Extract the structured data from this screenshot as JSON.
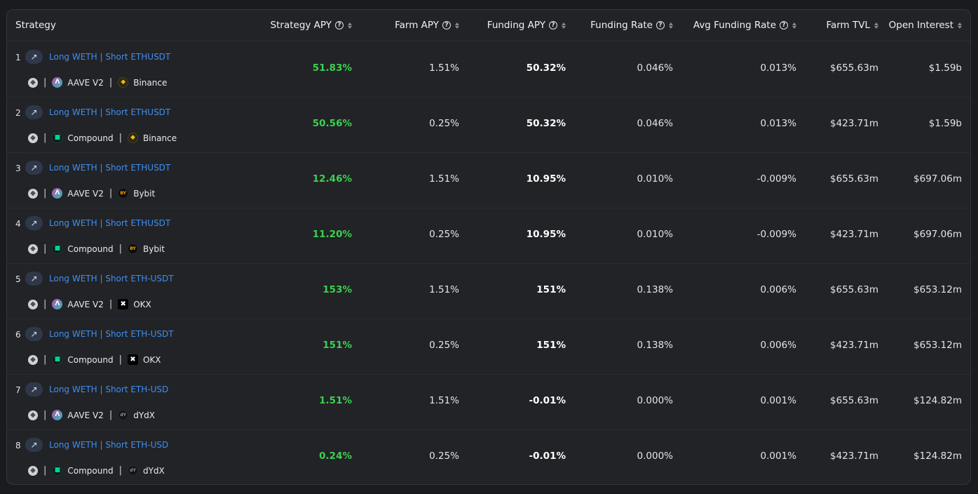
{
  "columns": [
    {
      "label": "Strategy",
      "help": false,
      "sort": false
    },
    {
      "label": "Strategy APY",
      "help": true,
      "sort": true
    },
    {
      "label": "Farm APY",
      "help": true,
      "sort": true
    },
    {
      "label": "Funding APY",
      "help": true,
      "sort": true
    },
    {
      "label": "Funding Rate",
      "help": true,
      "sort": true
    },
    {
      "label": "Avg Funding Rate",
      "help": true,
      "sort": true
    },
    {
      "label": "Farm TVL",
      "help": false,
      "sort": true
    },
    {
      "label": "Open Interest",
      "help": false,
      "sort": true
    }
  ],
  "rows": [
    {
      "index": "1",
      "strategy": "Long WETH | Short ETHUSDT",
      "protocol": "AAVE V2",
      "protocol_icon": "aave-icon",
      "exchange": "Binance",
      "exchange_icon": "binance-icon",
      "strategy_apy": "51.83%",
      "farm_apy": "1.51%",
      "funding_apy": "50.32%",
      "funding_rate": "0.046%",
      "avg_funding_rate": "0.013%",
      "farm_tvl": "$655.63m",
      "open_interest": "$1.59b"
    },
    {
      "index": "2",
      "strategy": "Long WETH | Short ETHUSDT",
      "protocol": "Compound",
      "protocol_icon": "compound-icon",
      "exchange": "Binance",
      "exchange_icon": "binance-icon",
      "strategy_apy": "50.56%",
      "farm_apy": "0.25%",
      "funding_apy": "50.32%",
      "funding_rate": "0.046%",
      "avg_funding_rate": "0.013%",
      "farm_tvl": "$423.71m",
      "open_interest": "$1.59b"
    },
    {
      "index": "3",
      "strategy": "Long WETH | Short ETHUSDT",
      "protocol": "AAVE V2",
      "protocol_icon": "aave-icon",
      "exchange": "Bybit",
      "exchange_icon": "bybit-icon",
      "strategy_apy": "12.46%",
      "farm_apy": "1.51%",
      "funding_apy": "10.95%",
      "funding_rate": "0.010%",
      "avg_funding_rate": "-0.009%",
      "farm_tvl": "$655.63m",
      "open_interest": "$697.06m"
    },
    {
      "index": "4",
      "strategy": "Long WETH | Short ETHUSDT",
      "protocol": "Compound",
      "protocol_icon": "compound-icon",
      "exchange": "Bybit",
      "exchange_icon": "bybit-icon",
      "strategy_apy": "11.20%",
      "farm_apy": "0.25%",
      "funding_apy": "10.95%",
      "funding_rate": "0.010%",
      "avg_funding_rate": "-0.009%",
      "farm_tvl": "$423.71m",
      "open_interest": "$697.06m"
    },
    {
      "index": "5",
      "strategy": "Long WETH | Short ETH-USDT",
      "protocol": "AAVE V2",
      "protocol_icon": "aave-icon",
      "exchange": "OKX",
      "exchange_icon": "okx-icon",
      "strategy_apy": "153%",
      "farm_apy": "1.51%",
      "funding_apy": "151%",
      "funding_rate": "0.138%",
      "avg_funding_rate": "0.006%",
      "farm_tvl": "$655.63m",
      "open_interest": "$653.12m"
    },
    {
      "index": "6",
      "strategy": "Long WETH | Short ETH-USDT",
      "protocol": "Compound",
      "protocol_icon": "compound-icon",
      "exchange": "OKX",
      "exchange_icon": "okx-icon",
      "strategy_apy": "151%",
      "farm_apy": "0.25%",
      "funding_apy": "151%",
      "funding_rate": "0.138%",
      "avg_funding_rate": "0.006%",
      "farm_tvl": "$423.71m",
      "open_interest": "$653.12m"
    },
    {
      "index": "7",
      "strategy": "Long WETH | Short ETH-USD",
      "protocol": "AAVE V2",
      "protocol_icon": "aave-icon",
      "exchange": "dYdX",
      "exchange_icon": "dydx-icon",
      "strategy_apy": "1.51%",
      "farm_apy": "1.51%",
      "funding_apy": "-0.01%",
      "funding_rate": "0.000%",
      "avg_funding_rate": "0.001%",
      "farm_tvl": "$655.63m",
      "open_interest": "$124.82m"
    },
    {
      "index": "8",
      "strategy": "Long WETH | Short ETH-USD",
      "protocol": "Compound",
      "protocol_icon": "compound-icon",
      "exchange": "dYdX",
      "exchange_icon": "dydx-icon",
      "strategy_apy": "0.24%",
      "farm_apy": "0.25%",
      "funding_apy": "-0.01%",
      "funding_rate": "0.000%",
      "avg_funding_rate": "0.001%",
      "farm_tvl": "$423.71m",
      "open_interest": "$124.82m"
    }
  ],
  "colors": {
    "apy_green": "#3bd14f",
    "link_blue": "#3f8ff0",
    "background": "#222327"
  }
}
